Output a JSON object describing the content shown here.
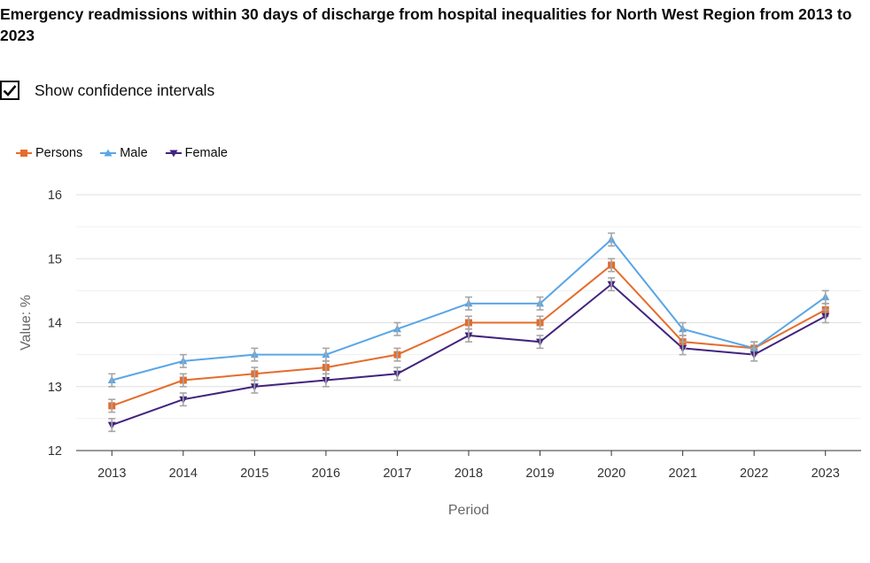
{
  "title": "Emergency readmissions within 30 days of discharge from hospital inequalities for North West Region from 2013 to 2023",
  "confidence_toggle": {
    "label": "Show confidence intervals",
    "checked": true
  },
  "colors": {
    "persons": "#e46c2c",
    "male": "#5aa6e6",
    "female": "#41237e",
    "ci": "#a6a6a6",
    "grid": "#e6e6e6",
    "axis": "#555555"
  },
  "chart_data": {
    "type": "line",
    "xlabel": "Period",
    "ylabel": "Value: %",
    "ylim": [
      12,
      16
    ],
    "yticks": [
      12,
      13,
      14,
      15,
      16
    ],
    "grid": true,
    "legend_position": "top-left",
    "categories": [
      "2013",
      "2014",
      "2015",
      "2016",
      "2017",
      "2018",
      "2019",
      "2020",
      "2021",
      "2022",
      "2023"
    ],
    "series": [
      {
        "name": "Persons",
        "marker": "square",
        "color": "#e46c2c",
        "values": [
          12.7,
          13.1,
          13.2,
          13.3,
          13.5,
          14.0,
          14.0,
          14.9,
          13.7,
          13.6,
          14.2
        ],
        "lower": [
          12.6,
          13.0,
          13.1,
          13.2,
          13.4,
          13.9,
          13.9,
          14.8,
          13.6,
          13.5,
          14.1
        ],
        "upper": [
          12.8,
          13.2,
          13.3,
          13.4,
          13.6,
          14.1,
          14.1,
          15.0,
          13.8,
          13.7,
          14.3
        ]
      },
      {
        "name": "Male",
        "marker": "triangle-up",
        "color": "#5aa6e6",
        "values": [
          13.1,
          13.4,
          13.5,
          13.5,
          13.9,
          14.3,
          14.3,
          15.3,
          13.9,
          13.6,
          14.4
        ],
        "lower": [
          13.0,
          13.3,
          13.4,
          13.4,
          13.8,
          14.2,
          14.2,
          15.2,
          13.8,
          13.5,
          14.3
        ],
        "upper": [
          13.2,
          13.5,
          13.6,
          13.6,
          14.0,
          14.4,
          14.4,
          15.4,
          14.0,
          13.7,
          14.5
        ]
      },
      {
        "name": "Female",
        "marker": "triangle-down",
        "color": "#41237e",
        "values": [
          12.4,
          12.8,
          13.0,
          13.1,
          13.2,
          13.8,
          13.7,
          14.6,
          13.6,
          13.5,
          14.1
        ],
        "lower": [
          12.3,
          12.7,
          12.9,
          13.0,
          13.1,
          13.7,
          13.6,
          14.5,
          13.5,
          13.4,
          14.0
        ],
        "upper": [
          12.5,
          12.9,
          13.1,
          13.2,
          13.3,
          13.9,
          13.8,
          14.7,
          13.7,
          13.6,
          14.2
        ]
      }
    ]
  }
}
